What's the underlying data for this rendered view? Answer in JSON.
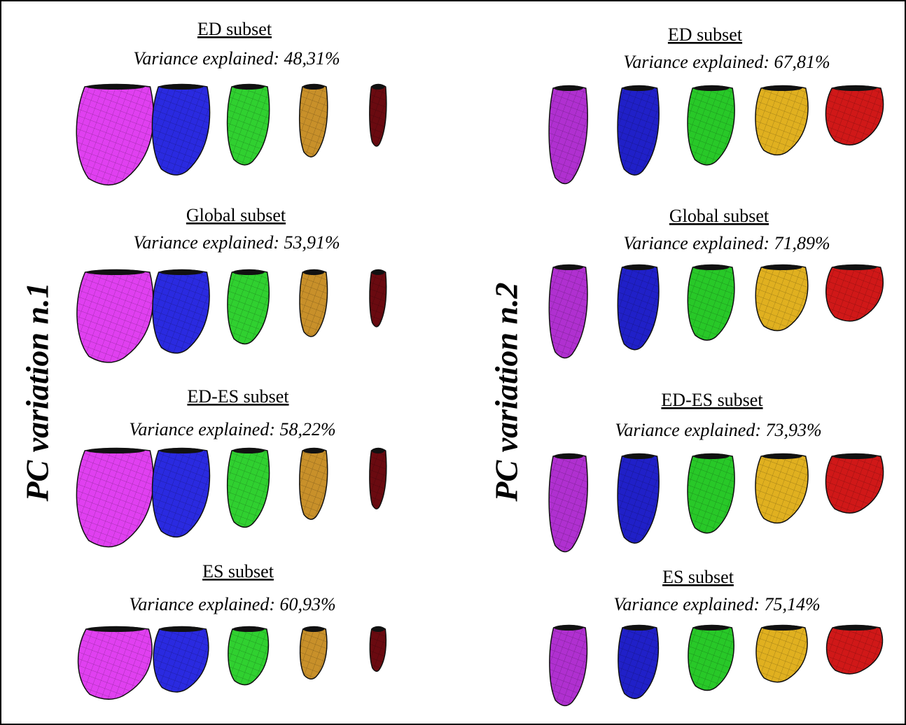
{
  "panels": [
    {
      "label": "PC variation n.1",
      "subsets": [
        {
          "title": "ED subset",
          "variance": "Variance explained: 48,31%"
        },
        {
          "title": "Global subset",
          "variance": "Variance explained: 53,91%"
        },
        {
          "title": "ED-ES subset",
          "variance": "Variance explained: 58,22%"
        },
        {
          "title": "ES subset",
          "variance": "Variance explained: 60,93%"
        }
      ]
    },
    {
      "label": "PC variation n.2",
      "subsets": [
        {
          "title": "ED subset",
          "variance": "Variance explained: 67,81%"
        },
        {
          "title": "Global subset",
          "variance": "Variance explained: 71,89%"
        },
        {
          "title": "ED-ES subset",
          "variance": "Variance explained: 73,93%"
        },
        {
          "title": "ES subset",
          "variance": "Variance explained: 75,14%"
        }
      ]
    }
  ]
}
